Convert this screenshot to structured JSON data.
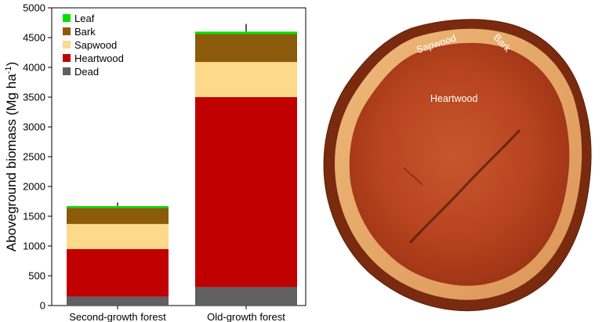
{
  "chart_data": {
    "type": "bar",
    "stacked": true,
    "categories": [
      "Second-growth forest",
      "Old-growth forest"
    ],
    "series": [
      {
        "name": "Dead",
        "color": "#606060",
        "values": [
          150,
          310
        ]
      },
      {
        "name": "Heartwood",
        "color": "#c00000",
        "values": [
          800,
          3190
        ]
      },
      {
        "name": "Sapwood",
        "color": "#fdd98a",
        "values": [
          420,
          590
        ]
      },
      {
        "name": "Bark",
        "color": "#8b5a0a",
        "values": [
          270,
          470
        ]
      },
      {
        "name": "Leaf",
        "color": "#00e000",
        "values": [
          30,
          40
        ]
      }
    ],
    "error_bars": [
      60,
      130
    ],
    "ylabel_text": "Aboveground biomass (Mg ha",
    "ylabel_sup": "-1",
    "ylabel_close": ")",
    "ylim": [
      0,
      5000
    ],
    "yticks": [
      0,
      500,
      1000,
      1500,
      2000,
      2500,
      3000,
      3500,
      4000,
      4500,
      5000
    ],
    "legend_order": [
      "Leaf",
      "Bark",
      "Sapwood",
      "Heartwood",
      "Dead"
    ],
    "legend_position": "top-left",
    "grid": false
  },
  "photo": {
    "labels": {
      "sapwood": "Sapwood",
      "bark": "Bark",
      "heartwood": "Heartwood"
    }
  }
}
